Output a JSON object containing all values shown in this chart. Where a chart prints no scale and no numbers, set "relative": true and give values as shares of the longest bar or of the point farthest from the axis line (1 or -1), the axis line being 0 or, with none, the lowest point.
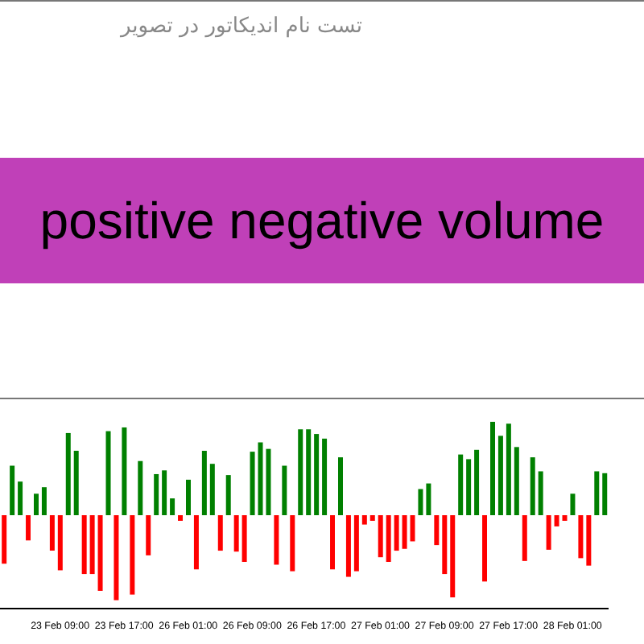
{
  "chart_data": [
    {
      "type": "other",
      "title": "تست نام اندیکاتور در تصویر",
      "annotations": [
        "positive negative volume"
      ]
    },
    {
      "type": "bar",
      "relative": true,
      "categories": [
        null,
        null,
        null,
        null,
        null,
        null,
        null,
        "23 Feb 09:00",
        null,
        null,
        null,
        null,
        null,
        null,
        null,
        "23 Feb 17:00",
        null,
        null,
        null,
        null,
        null,
        null,
        null,
        "26 Feb 01:00",
        null,
        null,
        null,
        null,
        null,
        null,
        null,
        "26 Feb 09:00",
        null,
        null,
        null,
        null,
        null,
        null,
        null,
        "26 Feb 17:00",
        null,
        null,
        null,
        null,
        null,
        null,
        null,
        "27 Feb 01:00",
        null,
        null,
        null,
        null,
        null,
        null,
        null,
        "27 Feb 09:00",
        null,
        null,
        null,
        null,
        null,
        null,
        null,
        "27 Feb 17:00",
        null,
        null,
        null,
        null,
        null,
        null,
        null,
        "28 Feb 01:00",
        null,
        null,
        null,
        null
      ],
      "values": [
        -0.52,
        0.53,
        0.36,
        -0.27,
        0.23,
        0.3,
        -0.38,
        -0.59,
        0.88,
        0.69,
        -0.63,
        -0.63,
        -0.81,
        0.9,
        -0.91,
        0.94,
        -0.85,
        0.58,
        -0.43,
        0.44,
        0.48,
        0.18,
        -0.06,
        0.38,
        -0.58,
        0.69,
        0.55,
        -0.38,
        0.43,
        -0.39,
        -0.5,
        0.68,
        0.78,
        0.71,
        -0.53,
        0.53,
        -0.6,
        0.92,
        0.92,
        0.87,
        0.82,
        -0.58,
        0.62,
        -0.66,
        -0.6,
        -0.1,
        -0.06,
        -0.45,
        -0.5,
        -0.38,
        -0.36,
        -0.28,
        0.28,
        0.34,
        -0.32,
        -0.63,
        -0.88,
        0.65,
        0.6,
        0.7,
        -0.71,
        1,
        0.85,
        0.98,
        0.73,
        -0.49,
        0.62,
        0.47,
        -0.37,
        -0.12,
        -0.06,
        0.23,
        -0.46,
        -0.54,
        0.47,
        0.45
      ],
      "colors": [
        "#ff0000",
        "#008000",
        "#008000",
        "#ff0000",
        "#008000",
        "#008000",
        "#ff0000",
        "#ff0000",
        "#008000",
        "#008000",
        "#ff0000",
        "#ff0000",
        "#ff0000",
        "#008000",
        "#ff0000",
        "#008000",
        "#ff0000",
        "#008000",
        "#ff0000",
        "#008000",
        "#008000",
        "#008000",
        "#ff0000",
        "#008000",
        "#ff0000",
        "#008000",
        "#008000",
        "#ff0000",
        "#008000",
        "#ff0000",
        "#ff0000",
        "#008000",
        "#008000",
        "#008000",
        "#ff0000",
        "#008000",
        "#ff0000",
        "#008000",
        "#008000",
        "#008000",
        "#008000",
        "#ff0000",
        "#008000",
        "#ff0000",
        "#ff0000",
        "#ff0000",
        "#ff0000",
        "#ff0000",
        "#ff0000",
        "#ff0000",
        "#ff0000",
        "#ff0000",
        "#008000",
        "#008000",
        "#ff0000",
        "#ff0000",
        "#ff0000",
        "#008000",
        "#008000",
        "#008000",
        "#ff0000",
        "#008000",
        "#008000",
        "#008000",
        "#008000",
        "#ff0000",
        "#008000",
        "#008000",
        "#ff0000",
        "#ff0000",
        "#ff0000",
        "#008000",
        "#ff0000",
        "#ff0000",
        "#008000",
        "#008000"
      ]
    }
  ]
}
